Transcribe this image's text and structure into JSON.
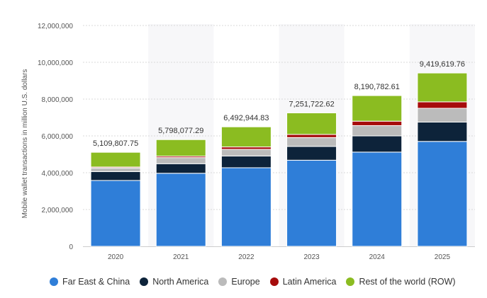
{
  "chart_data": {
    "type": "bar",
    "stacked": true,
    "categories": [
      "2020",
      "2021",
      "2022",
      "2023",
      "2024",
      "2025"
    ],
    "series": [
      {
        "name": "Far East & China",
        "color": "#2f7ed8",
        "values": [
          3580000,
          3970000,
          4270000,
          4680000,
          5120000,
          5700000
        ]
      },
      {
        "name": "North America",
        "color": "#0d233a",
        "values": [
          480000,
          520000,
          640000,
          750000,
          880000,
          1050000
        ]
      },
      {
        "name": "Europe",
        "color": "#bbbbbb",
        "values": [
          200000,
          330000,
          360000,
          480000,
          560000,
          750000
        ]
      },
      {
        "name": "Latin America",
        "color": "#a60c0c",
        "values": [
          50000,
          80000,
          130000,
          170000,
          240000,
          350000
        ]
      },
      {
        "name": "Rest of the world (ROW)",
        "color": "#8bbc21",
        "values": [
          799807.75,
          898077.29,
          1092944.83,
          1171722.62,
          1390782.61,
          1569619.76
        ]
      }
    ],
    "totals": [
      5109807.75,
      5798077.29,
      6492944.83,
      7251722.62,
      8190782.61,
      9419619.76
    ],
    "total_labels": [
      "5,109,807.75",
      "5,798,077.29",
      "6,492,944.83",
      "7,251,722.62",
      "8,190,782.61",
      "9,419,619.76"
    ],
    "ylabel": "Mobile wallet transactions in million U.S. dollars",
    "xlabel": "",
    "title": "",
    "ylim": [
      0,
      12000000
    ],
    "yticks": [
      0,
      2000000,
      4000000,
      6000000,
      8000000,
      10000000,
      12000000
    ],
    "ytick_labels": [
      "0",
      "2,000,000",
      "4,000,000",
      "6,000,000",
      "8,000,000",
      "10,000,000",
      "12,000,000"
    ],
    "grid": true,
    "legend_position": "bottom"
  }
}
